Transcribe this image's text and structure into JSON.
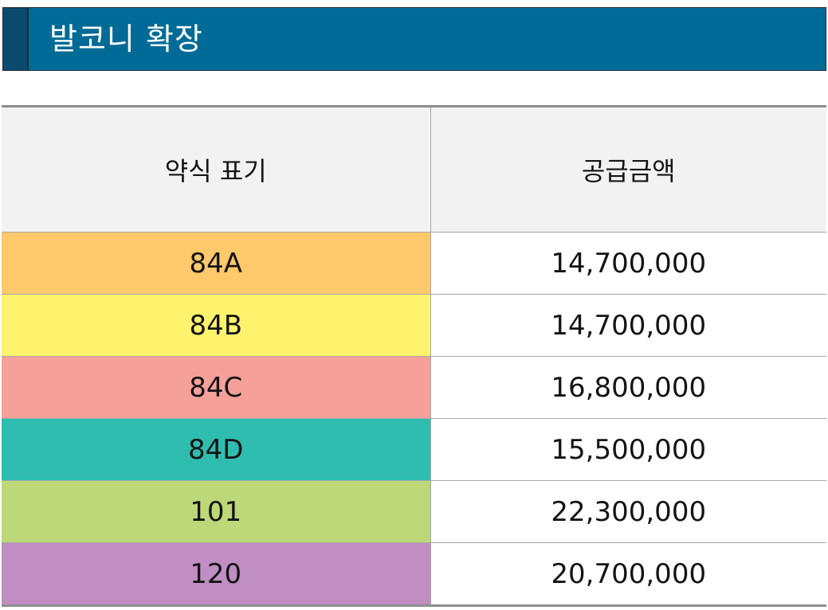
{
  "header": {
    "title": "발코니 확장"
  },
  "table": {
    "columns": [
      "약식 표기",
      "공급금액"
    ],
    "rows": [
      {
        "type": "84A",
        "amount": "14,700,000",
        "color": "#fec96a"
      },
      {
        "type": "84B",
        "amount": "14,700,000",
        "color": "#fff36e"
      },
      {
        "type": "84C",
        "amount": "16,800,000",
        "color": "#f6a09a"
      },
      {
        "type": "84D",
        "amount": "15,500,000",
        "color": "#2fbdaf"
      },
      {
        "type": "101",
        "amount": "22,300,000",
        "color": "#bcd878"
      },
      {
        "type": "120",
        "amount": "20,700,000",
        "color": "#c08ec3"
      }
    ]
  }
}
